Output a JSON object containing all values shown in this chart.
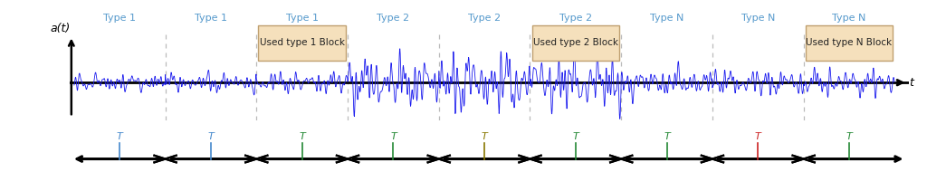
{
  "background_color": "#ffffff",
  "signal_color": "#1a1aee",
  "axis_color": "#000000",
  "type_label_color": "#5599cc",
  "dashed_line_color": "#bbbbbb",
  "num_blocks": 9,
  "block_labels": [
    "Type 1",
    "Type 1",
    "Type 1",
    "Type 2",
    "Type 2",
    "Type 2",
    "Type N",
    "Type N",
    "Type N"
  ],
  "used_blocks": [
    2,
    5,
    8
  ],
  "used_block_labels": [
    "Used type 1 Block",
    "Used type 2 Block",
    "Used type N Block"
  ],
  "used_block_color": "#f5e0bc",
  "used_block_edge_color": "#c0a070",
  "t_label_colors": [
    "#4488cc",
    "#4488cc",
    "#228833",
    "#228833",
    "#887700",
    "#228833",
    "#228833",
    "#cc2222",
    "#228833"
  ],
  "ylabel": "a(t)",
  "xlabel": "t",
  "seed": 42,
  "amplitudes": [
    0.25,
    0.28,
    0.3,
    0.75,
    0.85,
    0.8,
    0.4,
    0.38,
    0.38
  ]
}
